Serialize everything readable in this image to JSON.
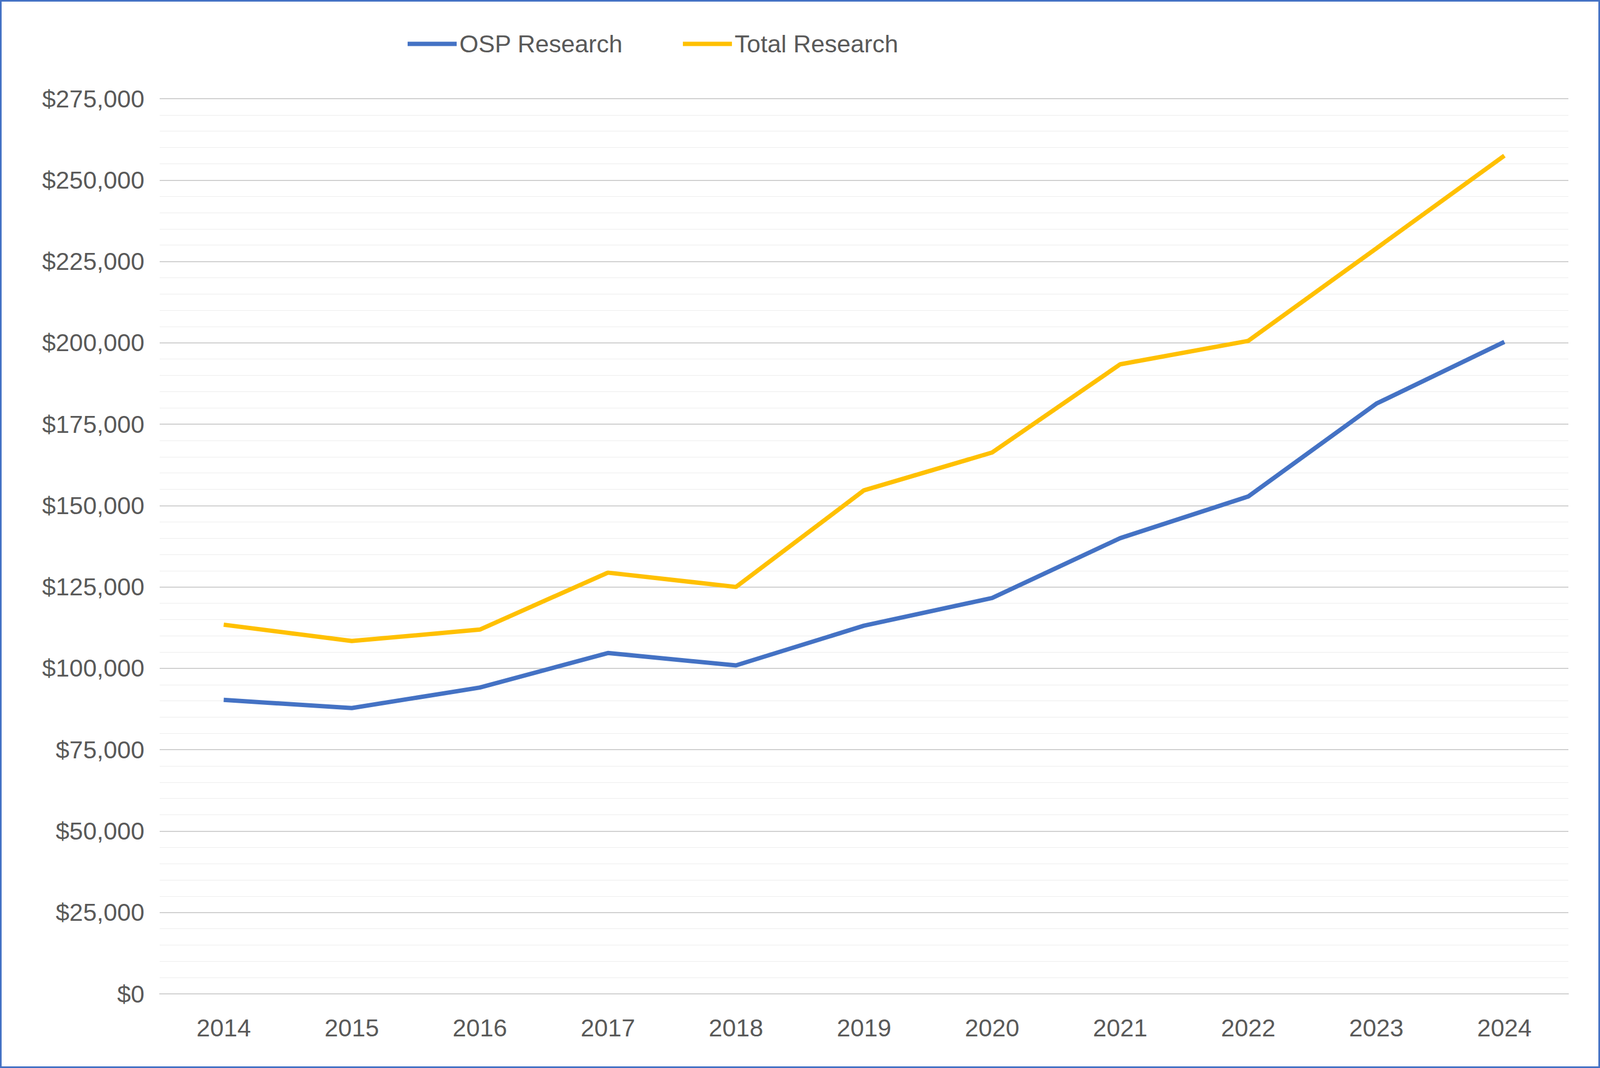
{
  "chart_data": {
    "type": "line",
    "categories": [
      "2014",
      "2015",
      "2016",
      "2017",
      "2018",
      "2019",
      "2020",
      "2021",
      "2022",
      "2023",
      "2024"
    ],
    "series": [
      {
        "name": "OSP Research",
        "color": "#4472c4",
        "values": [
          90300,
          87800,
          94100,
          104700,
          100900,
          113100,
          121600,
          140000,
          152800,
          181300,
          200300
        ]
      },
      {
        "name": "Total Research",
        "color": "#ffc000",
        "values": [
          113400,
          108400,
          111900,
          129400,
          125000,
          154700,
          166300,
          193400,
          200600,
          229000,
          257500
        ]
      }
    ],
    "ylim": [
      0,
      275000
    ],
    "yticks": [
      {
        "value": 0,
        "label": "$0"
      },
      {
        "value": 25000,
        "label": "$25,000"
      },
      {
        "value": 50000,
        "label": "$50,000"
      },
      {
        "value": 75000,
        "label": "$75,000"
      },
      {
        "value": 100000,
        "label": "$100,000"
      },
      {
        "value": 125000,
        "label": "$125,000"
      },
      {
        "value": 150000,
        "label": "$150,000"
      },
      {
        "value": 175000,
        "label": "$175,000"
      },
      {
        "value": 200000,
        "label": "$200,000"
      },
      {
        "value": 225000,
        "label": "$225,000"
      },
      {
        "value": 250000,
        "label": "$250,000"
      },
      {
        "value": 275000,
        "label": "$275,000"
      }
    ],
    "grid": true,
    "legend": "top"
  }
}
